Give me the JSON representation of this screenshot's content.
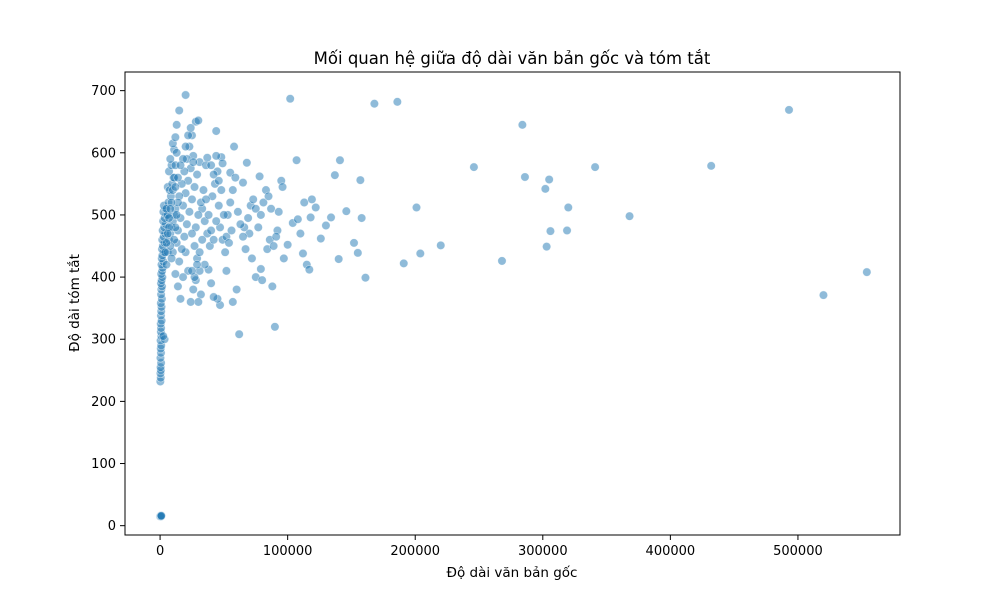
{
  "chart_data": {
    "type": "scatter",
    "title": "Mối quan hệ giữa độ dài văn bản gốc và tóm tắt",
    "xlabel": "Độ dài văn bản gốc",
    "ylabel": "Độ dài tóm tắt",
    "xlim": [
      -27500,
      580000
    ],
    "ylim": [
      -15,
      730
    ],
    "xticks": [
      0,
      100000,
      200000,
      300000,
      400000,
      500000
    ],
    "xtick_labels": [
      "0",
      "100000",
      "200000",
      "300000",
      "400000",
      "500000"
    ],
    "yticks": [
      0,
      100,
      200,
      300,
      400,
      500,
      600,
      700
    ],
    "ytick_labels": [
      "0",
      "100",
      "200",
      "300",
      "400",
      "500",
      "600",
      "700"
    ],
    "grid": false,
    "marker_color": "#1f77b4",
    "marker_alpha": 0.5,
    "series": [
      {
        "points": [
          [
            0,
            15
          ],
          [
            200,
            15
          ],
          [
            500,
            16
          ],
          [
            800,
            15
          ],
          [
            1000,
            16
          ],
          [
            200,
            232
          ],
          [
            500,
            238
          ],
          [
            300,
            245
          ],
          [
            600,
            250
          ],
          [
            400,
            255
          ],
          [
            800,
            262
          ],
          [
            300,
            270
          ],
          [
            700,
            278
          ],
          [
            500,
            285
          ],
          [
            900,
            290
          ],
          [
            400,
            298
          ],
          [
            1000,
            305
          ],
          [
            600,
            312
          ],
          [
            800,
            318
          ],
          [
            500,
            325
          ],
          [
            1200,
            330
          ],
          [
            700,
            338
          ],
          [
            900,
            345
          ],
          [
            1100,
            352
          ],
          [
            600,
            358
          ],
          [
            1400,
            365
          ],
          [
            800,
            372
          ],
          [
            1000,
            380
          ],
          [
            1500,
            385
          ],
          [
            700,
            390
          ],
          [
            1200,
            395
          ],
          [
            1800,
            400
          ],
          [
            900,
            405
          ],
          [
            1600,
            410
          ],
          [
            2000,
            415
          ],
          [
            1100,
            420
          ],
          [
            2500,
            425
          ],
          [
            1300,
            430
          ],
          [
            1800,
            435
          ],
          [
            3000,
            440
          ],
          [
            1500,
            445
          ],
          [
            2200,
            450
          ],
          [
            3500,
            455
          ],
          [
            1700,
            460
          ],
          [
            2800,
            465
          ],
          [
            4000,
            470
          ],
          [
            2000,
            475
          ],
          [
            3200,
            480
          ],
          [
            4500,
            485
          ],
          [
            2400,
            490
          ],
          [
            3600,
            495
          ],
          [
            5000,
            500
          ],
          [
            2600,
            505
          ],
          [
            4200,
            510
          ],
          [
            3000,
            515
          ],
          [
            3500,
            300
          ],
          [
            2500,
            305
          ],
          [
            6000,
            545
          ],
          [
            5000,
            420
          ],
          [
            6000,
            440
          ],
          [
            7000,
            460
          ],
          [
            8000,
            470
          ],
          [
            9000,
            480
          ],
          [
            10000,
            490
          ],
          [
            11000,
            500
          ],
          [
            12000,
            510
          ],
          [
            6500,
            520
          ],
          [
            8500,
            530
          ],
          [
            7500,
            540
          ],
          [
            9500,
            550
          ],
          [
            10500,
            560
          ],
          [
            7000,
            570
          ],
          [
            9000,
            580
          ],
          [
            8000,
            590
          ],
          [
            11000,
            605
          ],
          [
            10000,
            615
          ],
          [
            12000,
            625
          ],
          [
            13000,
            645
          ],
          [
            15000,
            668
          ],
          [
            20000,
            693
          ],
          [
            28000,
            650
          ],
          [
            30000,
            652
          ],
          [
            44000,
            635
          ],
          [
            25000,
            628
          ],
          [
            58000,
            610
          ],
          [
            37000,
            592
          ],
          [
            48000,
            593
          ],
          [
            49000,
            583
          ],
          [
            55000,
            568
          ],
          [
            65000,
            552
          ],
          [
            68000,
            584
          ],
          [
            78000,
            562
          ],
          [
            95000,
            555
          ],
          [
            96000,
            545
          ],
          [
            102000,
            687
          ],
          [
            107000,
            588
          ],
          [
            113000,
            520
          ],
          [
            118000,
            496
          ],
          [
            119000,
            525
          ],
          [
            122000,
            512
          ],
          [
            126000,
            462
          ],
          [
            130000,
            483
          ],
          [
            134000,
            496
          ],
          [
            137000,
            564
          ],
          [
            141000,
            588
          ],
          [
            140000,
            429
          ],
          [
            146000,
            506
          ],
          [
            152000,
            455
          ],
          [
            155000,
            439
          ],
          [
            157000,
            556
          ],
          [
            158000,
            495
          ],
          [
            161000,
            399
          ],
          [
            168000,
            679
          ],
          [
            186000,
            682
          ],
          [
            191000,
            422
          ],
          [
            201000,
            512
          ],
          [
            204000,
            438
          ],
          [
            220000,
            451
          ],
          [
            246000,
            577
          ],
          [
            268000,
            426
          ],
          [
            284000,
            645
          ],
          [
            286000,
            561
          ],
          [
            302000,
            542
          ],
          [
            303000,
            449
          ],
          [
            305000,
            557
          ],
          [
            306000,
            474
          ],
          [
            319000,
            475
          ],
          [
            320000,
            512
          ],
          [
            341000,
            577
          ],
          [
            368000,
            498
          ],
          [
            432000,
            579
          ],
          [
            493000,
            669
          ],
          [
            520000,
            371
          ],
          [
            554000,
            408
          ],
          [
            62000,
            308
          ],
          [
            90000,
            320
          ],
          [
            88000,
            385
          ],
          [
            75000,
            400
          ],
          [
            79000,
            413
          ],
          [
            72000,
            430
          ],
          [
            84000,
            445
          ],
          [
            86000,
            460
          ],
          [
            92000,
            475
          ],
          [
            97000,
            430
          ],
          [
            110000,
            470
          ],
          [
            112000,
            438
          ],
          [
            115000,
            420
          ],
          [
            117000,
            412
          ],
          [
            100000,
            452
          ],
          [
            104000,
            487
          ],
          [
            108000,
            493
          ],
          [
            80000,
            395
          ],
          [
            70000,
            470
          ],
          [
            66000,
            480
          ],
          [
            60000,
            380
          ],
          [
            57000,
            360
          ],
          [
            52000,
            410
          ],
          [
            47000,
            355
          ],
          [
            45000,
            365
          ],
          [
            42000,
            368
          ],
          [
            40000,
            390
          ],
          [
            38000,
            412
          ],
          [
            35000,
            420
          ],
          [
            32000,
            372
          ],
          [
            30000,
            360
          ],
          [
            28000,
            395
          ],
          [
            26000,
            380
          ],
          [
            24000,
            360
          ],
          [
            22000,
            410
          ],
          [
            20000,
            440
          ],
          [
            18000,
            400
          ],
          [
            16000,
            365
          ],
          [
            14000,
            385
          ],
          [
            12000,
            405
          ],
          [
            15000,
            425
          ],
          [
            17000,
            445
          ],
          [
            19000,
            465
          ],
          [
            21000,
            485
          ],
          [
            23000,
            505
          ],
          [
            25000,
            525
          ],
          [
            27000,
            545
          ],
          [
            29000,
            565
          ],
          [
            31000,
            585
          ],
          [
            33000,
            510
          ],
          [
            35000,
            490
          ],
          [
            37000,
            470
          ],
          [
            39000,
            450
          ],
          [
            41000,
            530
          ],
          [
            43000,
            550
          ],
          [
            45000,
            570
          ],
          [
            47000,
            480
          ],
          [
            49000,
            460
          ],
          [
            51000,
            440
          ],
          [
            53000,
            500
          ],
          [
            55000,
            520
          ],
          [
            57000,
            540
          ],
          [
            59000,
            560
          ],
          [
            61000,
            505
          ],
          [
            63000,
            485
          ],
          [
            65000,
            465
          ],
          [
            67000,
            445
          ],
          [
            69000,
            495
          ],
          [
            71000,
            515
          ],
          [
            73000,
            525
          ],
          [
            75000,
            510
          ],
          [
            77000,
            480
          ],
          [
            79000,
            500
          ],
          [
            81000,
            520
          ],
          [
            83000,
            540
          ],
          [
            85000,
            530
          ],
          [
            87000,
            510
          ],
          [
            89000,
            450
          ],
          [
            91000,
            465
          ],
          [
            93000,
            505
          ],
          [
            14000,
            475
          ],
          [
            16000,
            495
          ],
          [
            18000,
            515
          ],
          [
            20000,
            535
          ],
          [
            22000,
            555
          ],
          [
            24000,
            575
          ],
          [
            26000,
            595
          ],
          [
            28000,
            480
          ],
          [
            30000,
            500
          ],
          [
            32000,
            520
          ],
          [
            13000,
            455
          ],
          [
            15000,
            530
          ],
          [
            17000,
            550
          ],
          [
            19000,
            570
          ],
          [
            21000,
            590
          ],
          [
            23000,
            610
          ],
          [
            25000,
            470
          ],
          [
            27000,
            450
          ],
          [
            29000,
            430
          ],
          [
            31000,
            410
          ],
          [
            10000,
            440
          ],
          [
            11000,
            460
          ],
          [
            12000,
            480
          ],
          [
            13000,
            500
          ],
          [
            14000,
            520
          ],
          [
            9000,
            430
          ],
          [
            8000,
            450
          ],
          [
            7000,
            480
          ],
          [
            6000,
            500
          ],
          [
            5000,
            510
          ],
          [
            10000,
            540
          ],
          [
            11000,
            560
          ],
          [
            12000,
            580
          ],
          [
            13000,
            600
          ],
          [
            9000,
            520
          ],
          [
            8000,
            510
          ],
          [
            7000,
            495
          ],
          [
            6000,
            470
          ],
          [
            5000,
            455
          ],
          [
            4000,
            440
          ],
          [
            18000,
            590
          ],
          [
            20000,
            610
          ],
          [
            22000,
            628
          ],
          [
            24000,
            640
          ],
          [
            26000,
            585
          ],
          [
            16000,
            580
          ],
          [
            14000,
            560
          ],
          [
            12000,
            545
          ],
          [
            34000,
            540
          ],
          [
            36000,
            580
          ],
          [
            38000,
            500
          ],
          [
            40000,
            475
          ],
          [
            42000,
            460
          ],
          [
            44000,
            490
          ],
          [
            46000,
            515
          ],
          [
            48000,
            540
          ],
          [
            50000,
            500
          ],
          [
            52000,
            465
          ],
          [
            54000,
            455
          ],
          [
            56000,
            475
          ],
          [
            40000,
            580
          ],
          [
            42000,
            565
          ],
          [
            44000,
            595
          ],
          [
            46000,
            555
          ],
          [
            36000,
            525
          ],
          [
            33000,
            460
          ],
          [
            31000,
            440
          ],
          [
            29000,
            420
          ],
          [
            27000,
            400
          ],
          [
            25000,
            410
          ]
        ]
      }
    ]
  }
}
